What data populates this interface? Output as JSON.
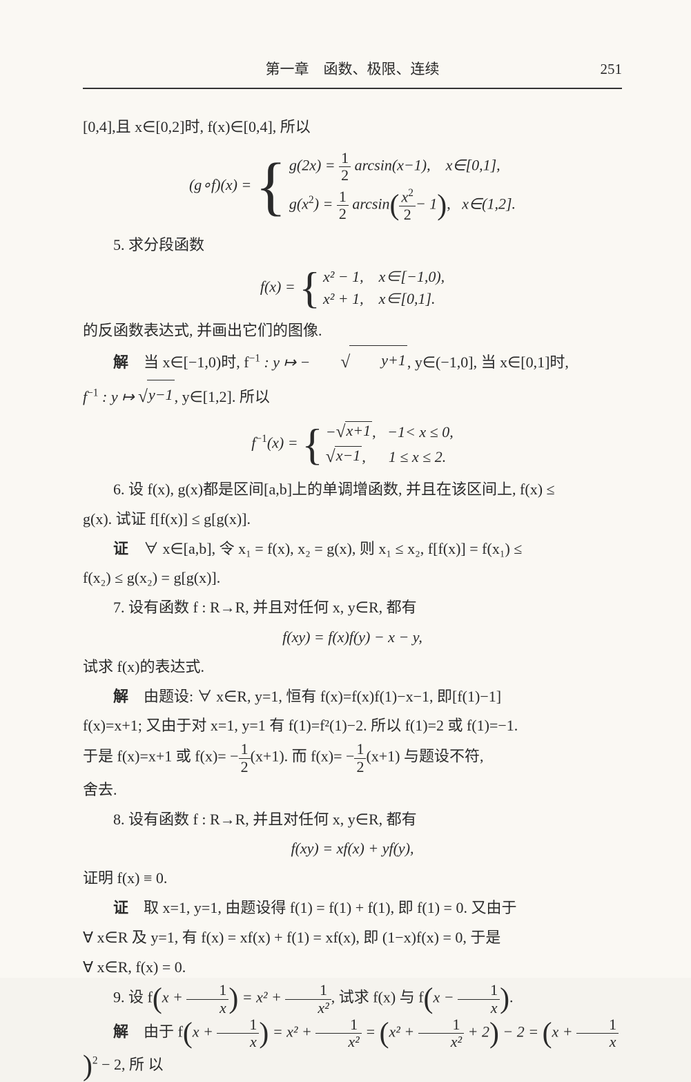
{
  "header": {
    "title": "第一章　函数、极限、连续",
    "page": "251"
  },
  "body": {
    "l1": "[0,4],且 x∈[0,2]时, f(x)∈[0,4], 所以",
    "eq1_lhs": "(g∘f)(x) =",
    "eq1_c1a": "g(2x) = ",
    "eq1_c1b": " arcsin(x−1),",
    "eq1_c1c": "x∈[0,1],",
    "eq1_c2a": "g(x",
    "eq1_c2a2": ") = ",
    "eq1_c2b": " arcsin",
    "eq1_c2c": "− 1",
    "eq1_c2d": "x∈(1,2].",
    "p5": "5. 求分段函数",
    "eq2_lhs": "f(x) =",
    "eq2_c1": "x² − 1,　x∈[−1,0),",
    "eq2_c2": "x² + 1,　x∈[0,1].",
    "p5b": "的反函数表达式, 并画出它们的图像.",
    "p5sol_a": "解",
    "p5sol_b": "　当 x∈[−1,0)时, f",
    "p5sol_b2": " : y ↦ −",
    "p5sol_b3": ", y∈(−1,0], 当 x∈[0,1]时,",
    "p5sol_c": "f",
    "p5sol_c2": " : y ↦ ",
    "p5sol_c3": ", y∈[1,2]. 所以",
    "sq_y1": "y+1",
    "sq_y2": "y−1",
    "eq3_lhs": "f",
    "eq3_lhs2": "(x) =",
    "eq3_c1a": "−",
    "eq3_c1b": "−1< x ≤ 0,",
    "eq3_c2b": "1 ≤ x ≤ 2.",
    "sq_x1": "x+1",
    "sq_x2": "x−1",
    "p6a": "6. 设 f(x), g(x)都是区间[a,b]上的单调增函数, 并且在该区间上, f(x) ≤",
    "p6b": "g(x). 试证 f[f(x)] ≤ g[g(x)].",
    "p6pf_a": "证",
    "p6pf_b": "　∀ x∈[a,b], 令 x₁ = f(x), x₂ = g(x), 则 x₁ ≤ x₂, f[f(x)] = f(x₁) ≤",
    "p6pf_c": "f(x₂) ≤ g(x₂) = g[g(x)].",
    "p7a": "7. 设有函数 f : R→R, 并且对任何 x, y∈R, 都有",
    "eq4": "f(xy) = f(x)f(y) − x − y,",
    "p7b": "试求 f(x)的表达式.",
    "p7sol_a": "解",
    "p7sol_b": "　由题设: ∀ x∈R, y=1, 恒有 f(x)=f(x)f(1)−x−1, 即[f(1)−1]",
    "p7sol_c": "f(x)=x+1; 又由于对 x=1, y=1 有 f(1)=f²(1)−2. 所以 f(1)=2 或 f(1)=−1.",
    "p7sol_d1": "于是 f(x)=x+1 或 f(x)= −",
    "p7sol_d2": "(x+1). 而 f(x)= −",
    "p7sol_d3": "(x+1) 与题设不符,",
    "p7sol_e": "舍去.",
    "p8a": "8. 设有函数 f : R→R, 并且对任何 x, y∈R, 都有",
    "eq5": "f(xy) = xf(x) + yf(y),",
    "p8b": "证明 f(x) ≡ 0.",
    "p8pf_a": "证",
    "p8pf_b": "　取 x=1, y=1, 由题设得 f(1) = f(1) + f(1), 即 f(1) = 0. 又由于",
    "p8pf_c": "∀ x∈R 及 y=1, 有 f(x) = xf(x) + f(1) = xf(x), 即 (1−x)f(x) = 0, 于是",
    "p8pf_d": "∀ x∈R, f(x) = 0.",
    "p9a1": "9. 设 f",
    "p9a2": "x + ",
    "p9a3": " = x² + ",
    "p9a4": ", 试求 f(x) 与 f",
    "p9a5": "x − ",
    "p9sol_a": "解",
    "p9sol_b1": "　由于 f",
    "p9sol_b2": "x + ",
    "p9sol_b3": " = x² + ",
    "p9sol_b4": " = ",
    "p9sol_b5": "x² + ",
    "p9sol_b6": " + 2",
    "p9sol_b7": " − 2 = ",
    "p9sol_b8": "x + ",
    "p9sol_b9": " − 2, 所 以",
    "one": "1",
    "two": "2",
    "x": "x",
    "x2": "x²",
    "half_n": "1",
    "half_d": "2",
    "dot": ".",
    "comma": ","
  }
}
